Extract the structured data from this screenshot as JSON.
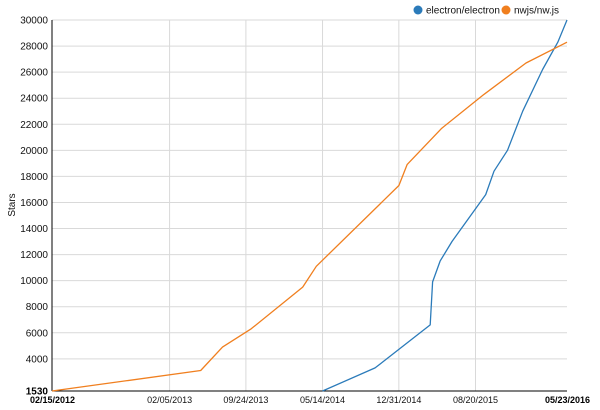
{
  "chart_data": {
    "type": "line",
    "ylabel": "Stars",
    "xlabel": "",
    "ylim": [
      1530,
      30000
    ],
    "xlim": [
      "2012-02-15",
      "2016-05-23"
    ],
    "grid": true,
    "legend_position": "top-right",
    "y_ticks": [
      1530,
      4000,
      6000,
      8000,
      10000,
      12000,
      14000,
      16000,
      18000,
      20000,
      22000,
      24000,
      26000,
      28000,
      30000
    ],
    "y_tick_labels": [
      "1530",
      "4000",
      "6000",
      "8000",
      "10000",
      "12000",
      "14000",
      "16000",
      "18000",
      "20000",
      "22000",
      "24000",
      "26000",
      "28000",
      "30000"
    ],
    "x_ticks": [
      "2012-02-15",
      "2013-02-05",
      "2013-09-24",
      "2014-05-14",
      "2014-12-31",
      "2015-08-20",
      "2016-05-23"
    ],
    "x_tick_labels": [
      "02/15/2012",
      "02/05/2013",
      "09/24/2013",
      "05/14/2014",
      "12/31/2014",
      "08/20/2015",
      "05/23/2016"
    ],
    "series": [
      {
        "name": "electron/electron",
        "color": "#2b7bba",
        "x": [
          "2014-05-14",
          "2014-10-20",
          "2015-04-05",
          "2015-04-12",
          "2015-05-05",
          "2015-06-10",
          "2015-09-20",
          "2015-10-15",
          "2015-11-25",
          "2016-01-10",
          "2016-03-10",
          "2016-04-25",
          "2016-05-23"
        ],
        "y": [
          1530,
          3300,
          6600,
          9900,
          11500,
          13000,
          16600,
          18400,
          20000,
          23000,
          26200,
          28300,
          30000
        ]
      },
      {
        "name": "nwjs/nw.js",
        "color": "#f07f1f",
        "x": [
          "2012-02-15",
          "2013-05-10",
          "2013-07-15",
          "2013-10-10",
          "2014-03-15",
          "2014-04-25",
          "2014-12-31",
          "2015-01-25",
          "2015-05-10",
          "2015-09-15",
          "2016-01-20",
          "2016-05-23"
        ],
        "y": [
          1530,
          3100,
          4900,
          6300,
          9500,
          11100,
          17300,
          18900,
          21700,
          24300,
          26700,
          28300
        ]
      }
    ]
  }
}
